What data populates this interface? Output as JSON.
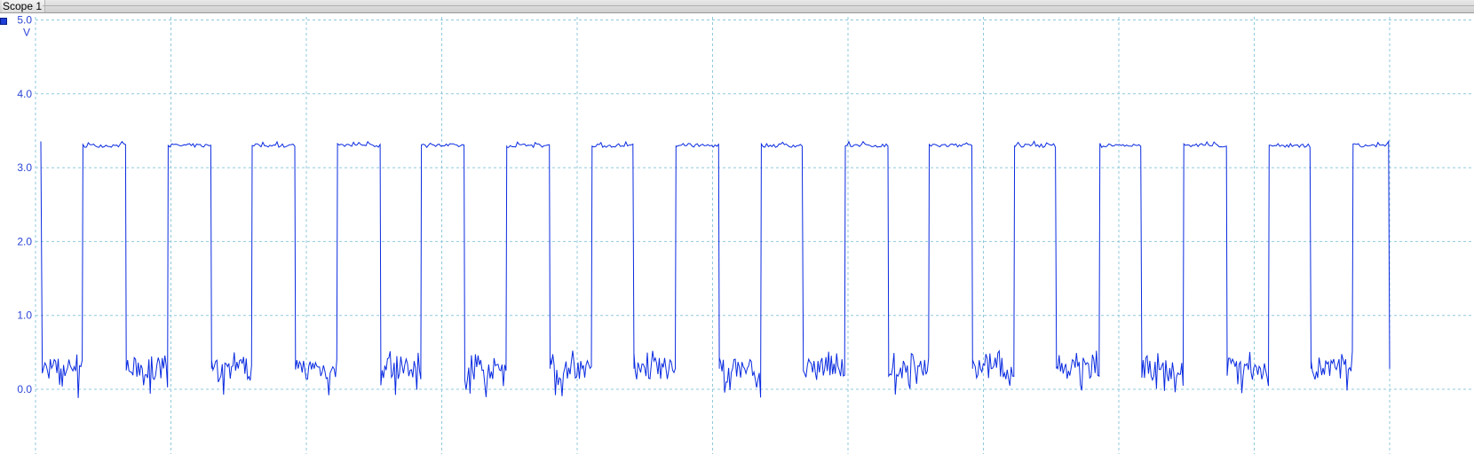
{
  "window": {
    "title": "Scope 1"
  },
  "channel": {
    "color": "#1f3fd6",
    "icon": "channel-marker-icon"
  },
  "chart_data": {
    "type": "line",
    "title": "",
    "xlabel": "",
    "ylabel": "",
    "y_unit": "V",
    "ylim": [
      -0.2,
      5.0
    ],
    "y_ticks": [
      "0.0",
      "1.0",
      "2.0",
      "3.0",
      "4.0",
      "5.0"
    ],
    "grid": true,
    "x_divisions": 10,
    "series": [
      {
        "color": "#0a2be0",
        "shape": "square-wave",
        "high_level": 3.3,
        "low_level": 0.28,
        "edges_div": [
          0.05,
          0.35,
          0.67,
          0.98,
          1.3,
          1.6,
          1.92,
          2.23,
          2.55,
          2.85,
          3.17,
          3.48,
          3.8,
          4.11,
          4.42,
          4.73,
          5.05,
          5.36,
          5.67,
          5.98,
          6.3,
          6.6,
          6.92,
          7.23,
          7.54,
          7.86,
          8.17,
          8.48,
          8.8,
          9.11,
          9.42,
          9.73
        ]
      }
    ]
  }
}
